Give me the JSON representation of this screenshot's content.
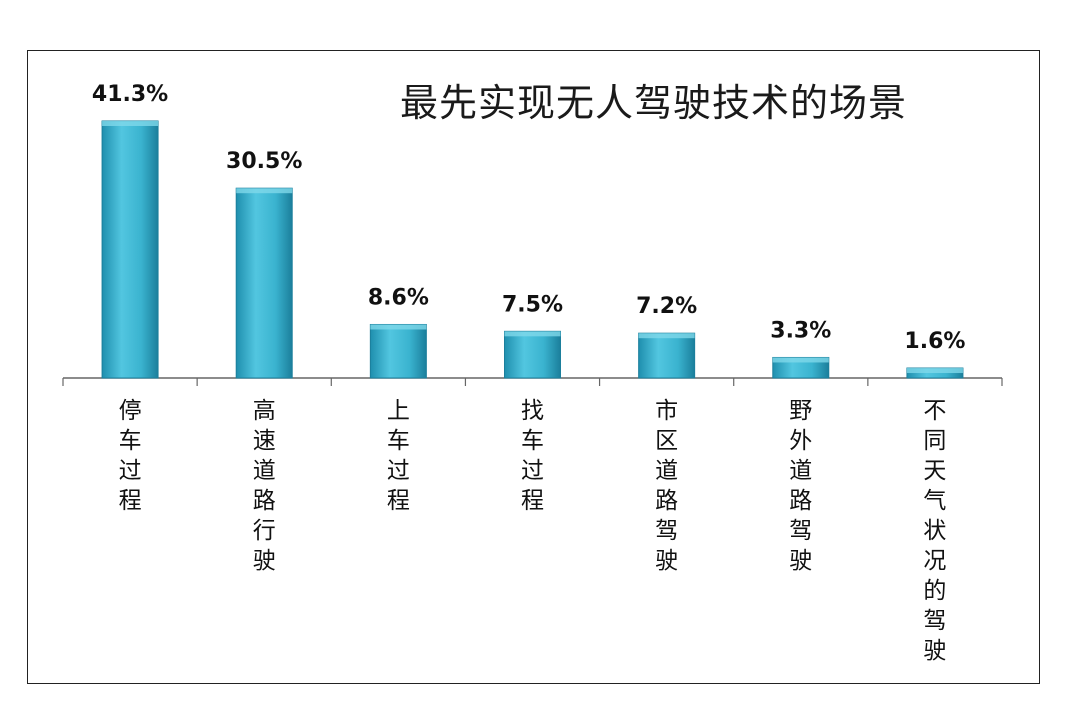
{
  "chart_data": {
    "type": "bar",
    "title": "最先实现无人驾驶技术的场景",
    "categories": [
      "停车过程",
      "高速道路行驶",
      "上车过程",
      "找车过程",
      "市区道路驾驶",
      "野外道路驾驶",
      "不同天气状况的驾驶"
    ],
    "values": [
      41.3,
      30.5,
      8.6,
      7.5,
      7.2,
      3.3,
      1.6
    ],
    "data_labels": [
      "41.3%",
      "30.5%",
      "8.6%",
      "7.5%",
      "7.2%",
      "3.3%",
      "1.6%"
    ],
    "xlabel": "",
    "ylabel": "",
    "ylim": [
      0,
      41.3
    ],
    "grid": false,
    "legend": "none",
    "bar_color": "#3ab3cf"
  }
}
